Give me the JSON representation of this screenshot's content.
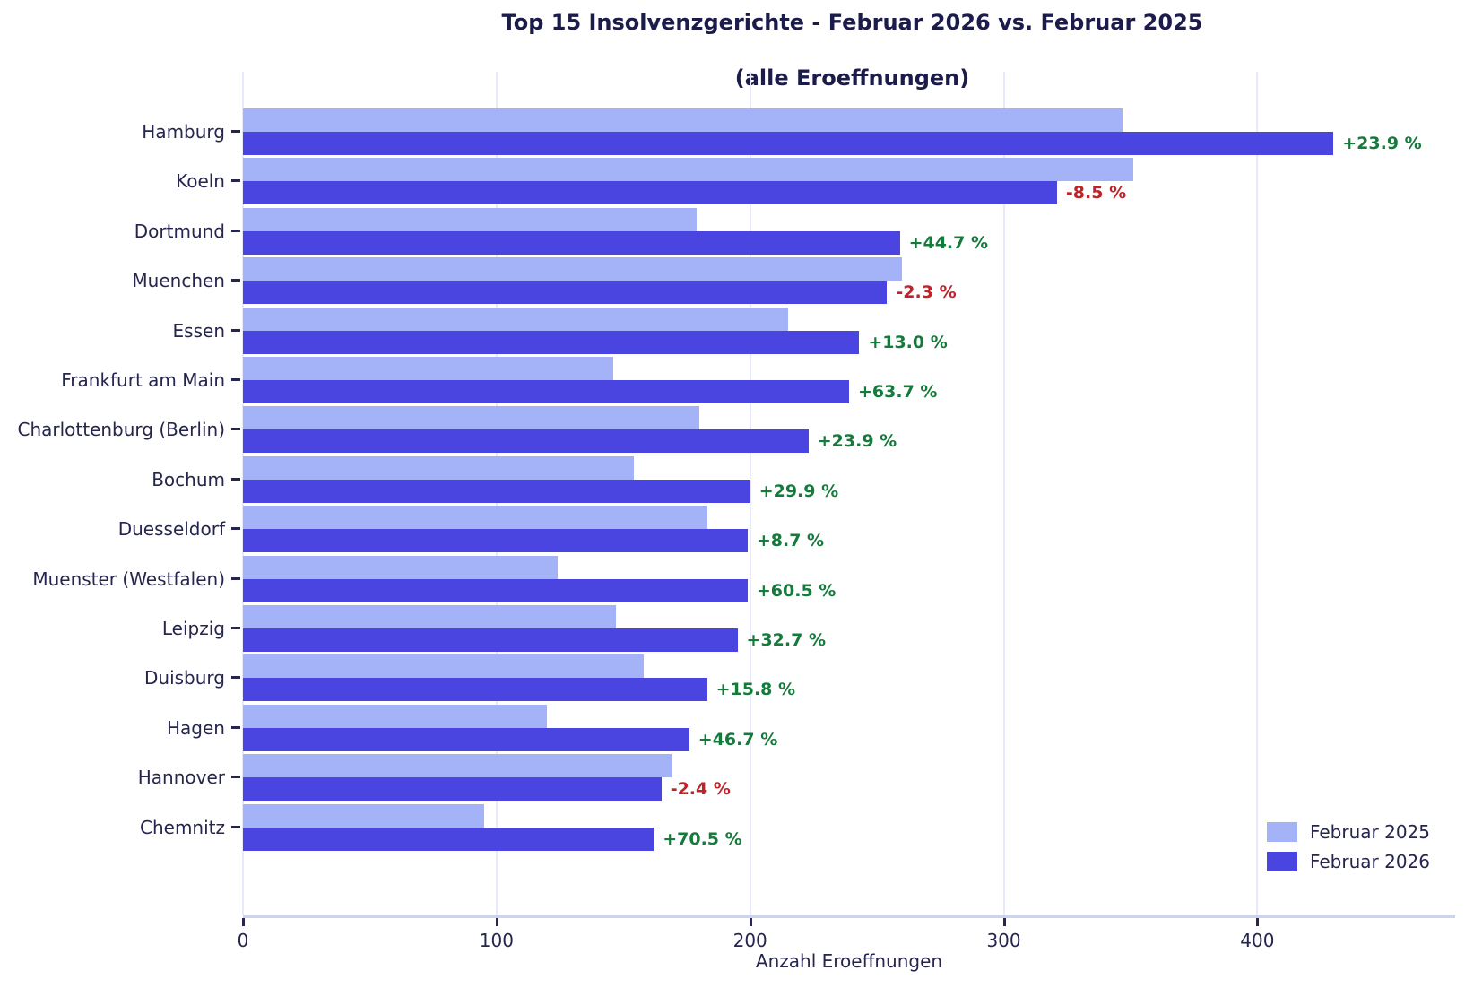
{
  "chart": {
    "title_line1": "Top 15 Insolvenzgerichte - Februar 2026 vs. Februar 2025",
    "title_line2": "(alle Eroeffnungen)",
    "xlabel": "Anzahl Eroeffnungen"
  },
  "legend": {
    "items": [
      {
        "label": "Februar 2025",
        "color": "#a4b2f8"
      },
      {
        "label": "Februar 2026",
        "color": "#4a44e0"
      }
    ]
  },
  "chart_data": {
    "type": "bar",
    "orientation": "horizontal",
    "title": "Top 15 Insolvenzgerichte - Februar 2026 vs. Februar 2025 (alle Eroeffnungen)",
    "xlabel": "Anzahl Eroeffnungen",
    "categories": [
      "Hamburg",
      "Koeln",
      "Dortmund",
      "Muenchen",
      "Essen",
      "Frankfurt am Main",
      "Charlottenburg (Berlin)",
      "Bochum",
      "Duesseldorf",
      "Muenster (Westfalen)",
      "Leipzig",
      "Duisburg",
      "Hagen",
      "Hannover",
      "Chemnitz"
    ],
    "series": [
      {
        "name": "Februar 2025",
        "color": "#a4b2f8",
        "values": [
          347,
          351,
          179,
          260,
          215,
          146,
          180,
          154,
          183,
          124,
          147,
          158,
          120,
          169,
          95
        ]
      },
      {
        "name": "Februar 2026",
        "color": "#4a44e0",
        "values": [
          430,
          321,
          259,
          254,
          243,
          239,
          223,
          200,
          199,
          199,
          195,
          183,
          176,
          165,
          162
        ]
      }
    ],
    "pct_change_labels": [
      "+23.9 %",
      "-8.5 %",
      "+44.7 %",
      "-2.3 %",
      "+13.0 %",
      "+63.7 %",
      "+23.9 %",
      "+29.9 %",
      "+8.7 %",
      "+60.5 %",
      "+32.7 %",
      "+15.8 %",
      "+46.7 %",
      "-2.4 %",
      "+70.5 %"
    ],
    "pct_positive_color": "#167a3d",
    "pct_negative_color": "#bf2228",
    "xlim": [
      0,
      478
    ],
    "xticks": [
      0,
      100,
      200,
      300,
      400
    ],
    "grid": true,
    "gridline_color": "#e6eafa",
    "axis_line_color": "#c9d4f4",
    "text_color": "#25254e",
    "legend_position": "lower right"
  }
}
